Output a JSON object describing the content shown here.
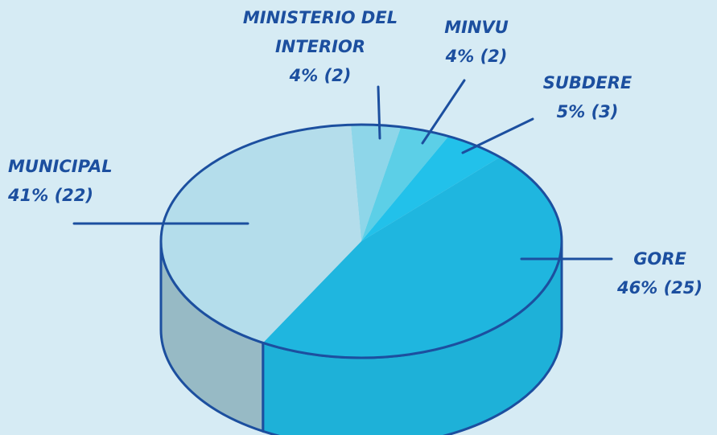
{
  "chart_data": {
    "type": "pie3d",
    "categories": [
      "MINISTERIO DEL INTERIOR",
      "MINVU",
      "SUBDERE",
      "GORE",
      "MUNICIPAL"
    ],
    "values": [
      4,
      4,
      5,
      46,
      41
    ],
    "value_labels": [
      "4% (2)",
      "4% (2)",
      "5% (3)",
      "46% (25)",
      "41% (22)"
    ],
    "colors": [
      "#8ed6e9",
      "#5ccfe7",
      "#22c1ea",
      "#1fb6df",
      "#b4ddeb"
    ]
  }
}
